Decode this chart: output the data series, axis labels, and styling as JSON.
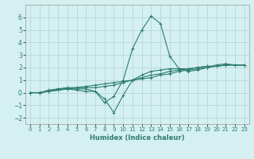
{
  "xlabel": "Humidex (Indice chaleur)",
  "ylabel": "",
  "xlim": [
    -0.5,
    23.5
  ],
  "ylim": [
    -2.5,
    7.0
  ],
  "yticks": [
    -2,
    -1,
    0,
    1,
    2,
    3,
    4,
    5,
    6
  ],
  "xticks": [
    0,
    1,
    2,
    3,
    4,
    5,
    6,
    7,
    8,
    9,
    10,
    11,
    12,
    13,
    14,
    15,
    16,
    17,
    18,
    19,
    20,
    21,
    22,
    23
  ],
  "bg_color": "#d4f0f0",
  "grid_color": "#b8d8d8",
  "line_color": "#2e7d6e",
  "lines": [
    [
      0.0,
      0.0,
      0.2,
      0.3,
      0.3,
      0.2,
      0.1,
      0.1,
      -0.8,
      -0.3,
      1.0,
      3.5,
      5.0,
      6.1,
      5.5,
      2.9,
      1.9,
      1.7,
      1.8,
      2.0,
      2.2,
      2.3,
      2.2,
      2.2
    ],
    [
      0.0,
      0.0,
      0.1,
      0.2,
      0.3,
      0.3,
      0.3,
      0.1,
      -0.5,
      -1.6,
      -0.2,
      1.0,
      1.4,
      1.7,
      1.8,
      1.9,
      1.9,
      1.9,
      2.0,
      2.1,
      2.1,
      2.2,
      2.2,
      2.2
    ],
    [
      0.0,
      0.0,
      0.1,
      0.3,
      0.4,
      0.4,
      0.4,
      0.4,
      0.5,
      0.6,
      0.8,
      1.0,
      1.2,
      1.4,
      1.5,
      1.7,
      1.8,
      1.9,
      2.0,
      2.1,
      2.1,
      2.2,
      2.2,
      2.2
    ],
    [
      0.0,
      0.0,
      0.1,
      0.2,
      0.3,
      0.4,
      0.5,
      0.6,
      0.7,
      0.8,
      0.9,
      1.0,
      1.1,
      1.2,
      1.4,
      1.5,
      1.7,
      1.8,
      1.9,
      2.0,
      2.1,
      2.2,
      2.2,
      2.2
    ]
  ],
  "marker": "+",
  "markersize": 3,
  "linewidth": 0.8
}
